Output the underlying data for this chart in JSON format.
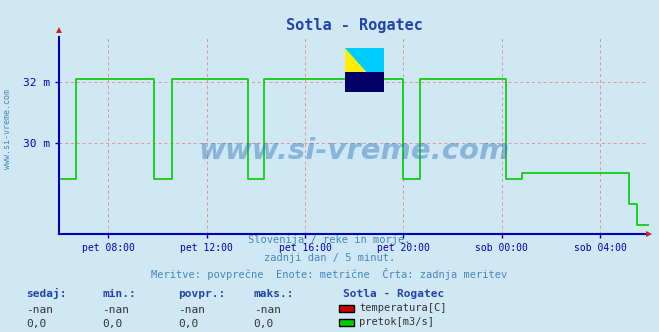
{
  "title": "Sotla - Rogatec",
  "bg_color": "#d0e8f4",
  "plot_bg_color": "#d0e8f4",
  "grid_color": "#e89090",
  "axis_color": "#0000bb",
  "line_color_flow": "#00cc00",
  "line_color_temp": "#cc0000",
  "title_color": "#2244aa",
  "tick_color": "#3399bb",
  "ytick_labels": [
    "32 m",
    "30 m"
  ],
  "ytick_values": [
    32.0,
    30.0
  ],
  "ylim": [
    27.0,
    33.5
  ],
  "xlim": [
    0,
    288
  ],
  "xtick_positions": [
    24,
    72,
    120,
    168,
    216,
    264
  ],
  "xtick_labels": [
    "pet 08:00",
    "pet 12:00",
    "pet 16:00",
    "pet 20:00",
    "sob 00:00",
    "sob 04:00"
  ],
  "watermark": "www.si-vreme.com",
  "subtitle1": "Slovenija / reke in morje.",
  "subtitle2": "zadnji dan / 5 minut.",
  "subtitle3": "Meritve: povprečne  Enote: metrične  Črta: zadnja meritev",
  "footer_labels": [
    "sedaj:",
    "min.:",
    "povpr.:",
    "maks.:",
    "Sotla - Rogatec"
  ],
  "footer_row1": [
    "-nan",
    "-nan",
    "-nan",
    "-nan"
  ],
  "footer_row2": [
    "0,0",
    "0,0",
    "0,0",
    "0,0"
  ],
  "legend_temp_label": "temperatura[C]",
  "legend_flow_label": "pretok[m3/s]",
  "legend_temp_color": "#cc0000",
  "legend_flow_color": "#00cc00",
  "flow_x": [
    0,
    8,
    8,
    46,
    46,
    55,
    55,
    92,
    92,
    100,
    100,
    168,
    168,
    176,
    176,
    218,
    218,
    226,
    226,
    278,
    278,
    282,
    282,
    288
  ],
  "flow_y": [
    28.8,
    28.8,
    32.1,
    32.1,
    28.8,
    28.8,
    32.1,
    32.1,
    28.8,
    28.8,
    32.1,
    32.1,
    28.8,
    28.8,
    32.1,
    32.1,
    28.8,
    28.8,
    29.0,
    29.0,
    28.0,
    28.0,
    27.3,
    27.3
  ]
}
